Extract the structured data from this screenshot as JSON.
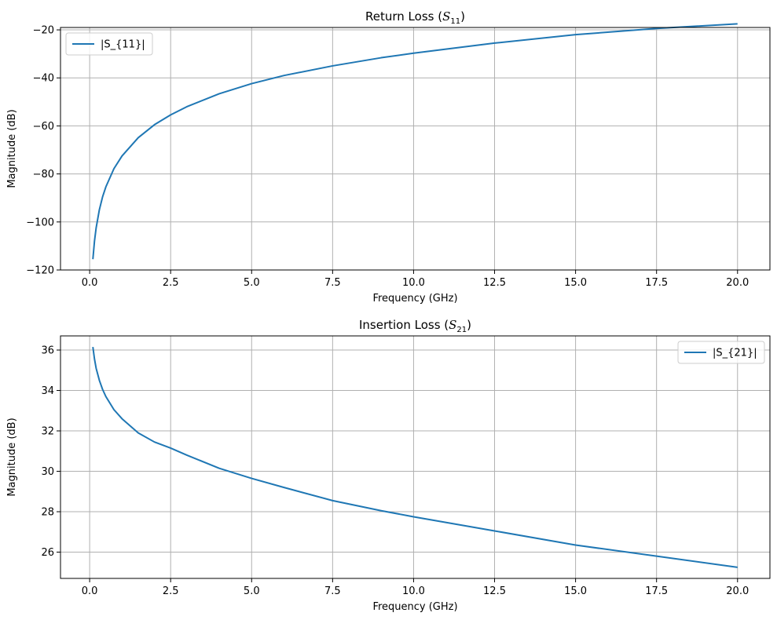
{
  "chart_data": [
    {
      "type": "line",
      "title": "Return Loss (",
      "title_symbol": "S",
      "title_subscript": "11",
      "title_suffix": ")",
      "xlabel": "Frequency (GHz)",
      "ylabel": "Magnitude (dB)",
      "xlim": [
        -0.9,
        21.0
      ],
      "ylim": [
        -120,
        -19.0
      ],
      "xticks": [
        0.0,
        2.5,
        5.0,
        7.5,
        10.0,
        12.5,
        15.0,
        17.5,
        20.0
      ],
      "xtick_labels": [
        "0.0",
        "2.5",
        "5.0",
        "7.5",
        "10.0",
        "12.5",
        "15.0",
        "17.5",
        "20.0"
      ],
      "yticks": [
        -120,
        -100,
        -80,
        -60,
        -40,
        -20
      ],
      "ytick_labels": [
        "−120",
        "−100",
        "−80",
        "−60",
        "−40",
        "−20"
      ],
      "grid": true,
      "legend_position": "upper-left",
      "series": [
        {
          "name": "|S_{11}|",
          "color": "#1f77b4",
          "x": [
            0.1,
            0.15,
            0.2,
            0.3,
            0.4,
            0.5,
            0.75,
            1.0,
            1.5,
            2.0,
            2.5,
            3.0,
            4.0,
            5.0,
            6.0,
            7.5,
            9.0,
            10.0,
            12.5,
            15.0,
            17.5,
            20.0
          ],
          "y": [
            -115.5,
            -107.9,
            -102.5,
            -94.9,
            -89.5,
            -85.4,
            -77.8,
            -72.5,
            -64.9,
            -59.5,
            -55.4,
            -52.0,
            -46.6,
            -42.4,
            -39.0,
            -35.0,
            -31.6,
            -29.7,
            -25.5,
            -22.0,
            -19.4,
            -17.5
          ]
        }
      ]
    },
    {
      "type": "line",
      "title": "Insertion Loss (",
      "title_symbol": "S",
      "title_subscript": "21",
      "title_suffix": ")",
      "xlabel": "Frequency (GHz)",
      "ylabel": "Magnitude (dB)",
      "xlim": [
        -0.9,
        21.0
      ],
      "ylim": [
        24.7,
        36.7
      ],
      "xticks": [
        0.0,
        2.5,
        5.0,
        7.5,
        10.0,
        12.5,
        15.0,
        17.5,
        20.0
      ],
      "xtick_labels": [
        "0.0",
        "2.5",
        "5.0",
        "7.5",
        "10.0",
        "12.5",
        "15.0",
        "17.5",
        "20.0"
      ],
      "yticks": [
        26,
        28,
        30,
        32,
        34,
        36
      ],
      "ytick_labels": [
        "26",
        "28",
        "30",
        "32",
        "34",
        "36"
      ],
      "grid": true,
      "legend_position": "upper-right",
      "series": [
        {
          "name": "|S_{21}|",
          "color": "#1f77b4",
          "x": [
            0.1,
            0.15,
            0.2,
            0.3,
            0.4,
            0.5,
            0.75,
            1.0,
            1.5,
            2.0,
            2.5,
            3.0,
            4.0,
            5.0,
            6.0,
            7.5,
            9.0,
            10.0,
            12.5,
            15.0,
            17.5,
            20.0
          ],
          "y": [
            36.15,
            35.55,
            35.1,
            34.5,
            34.05,
            33.7,
            33.05,
            32.6,
            31.9,
            31.45,
            31.15,
            30.8,
            30.15,
            29.65,
            29.2,
            28.55,
            28.05,
            27.75,
            27.05,
            26.35,
            25.8,
            25.25
          ]
        }
      ]
    }
  ]
}
